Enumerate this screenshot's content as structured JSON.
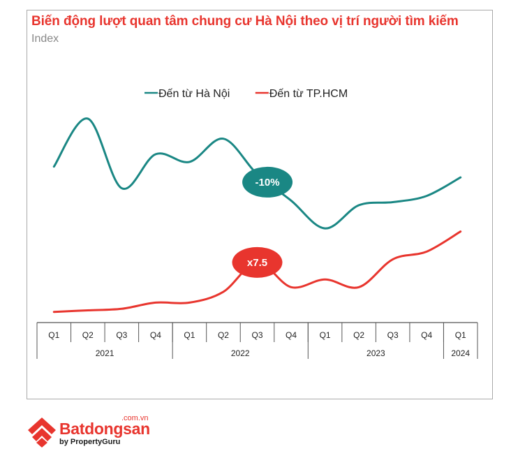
{
  "header": {
    "title": "Biến động lượt quan tâm chung cư Hà Nội theo vị trí người tìm kiếm",
    "subtitle": "Index"
  },
  "brand": {
    "name": "Batdongsan",
    "domain": ".com.vn",
    "by": "by PropertyGuru"
  },
  "colors": {
    "hanoi": "#1a8784",
    "hcm": "#e8352e",
    "title": "#e8352e",
    "grid": "#555555"
  },
  "chart_data": {
    "type": "line",
    "title": "Biến động lượt quan tâm chung cư Hà Nội theo vị trí người tìm kiếm",
    "ylabel": "Index",
    "y_scale": "index (no numeric axis shown)",
    "grid": false,
    "legend_position": "top-center",
    "x": [
      "Q1 2021",
      "Q2 2021",
      "Q3 2021",
      "Q4 2021",
      "Q1 2022",
      "Q2 2022",
      "Q3 2022",
      "Q4 2022",
      "Q1 2023",
      "Q2 2023",
      "Q3 2023",
      "Q4 2023",
      "Q1 2024"
    ],
    "quarter_labels": [
      "Q1",
      "Q2",
      "Q3",
      "Q4",
      "Q1",
      "Q2",
      "Q3",
      "Q4",
      "Q1",
      "Q2",
      "Q3",
      "Q4",
      "Q1"
    ],
    "year_groups": [
      {
        "label": "2021",
        "span": 4
      },
      {
        "label": "2022",
        "span": 4
      },
      {
        "label": "2023",
        "span": 4
      },
      {
        "label": "2024",
        "span": 1
      }
    ],
    "series": [
      {
        "name": "Đến từ Hà Nội",
        "color": "#1a8784",
        "values": [
          100,
          131,
          86,
          108,
          103,
          118,
          95,
          78,
          60,
          75,
          77,
          81,
          93
        ]
      },
      {
        "name": "Đến từ TP.HCM",
        "color": "#e8352e",
        "values": [
          6,
          7,
          8,
          12,
          12,
          19,
          38,
          22,
          27,
          22,
          40,
          45,
          58
        ]
      }
    ],
    "ylim": [
      0,
      140
    ],
    "annotations": [
      {
        "text": "-10%",
        "series": 0,
        "x_index": 6.3,
        "color": "#1a8784"
      },
      {
        "text": "x7.5",
        "series": 1,
        "x_index": 6.0,
        "color": "#e8352e"
      }
    ]
  }
}
